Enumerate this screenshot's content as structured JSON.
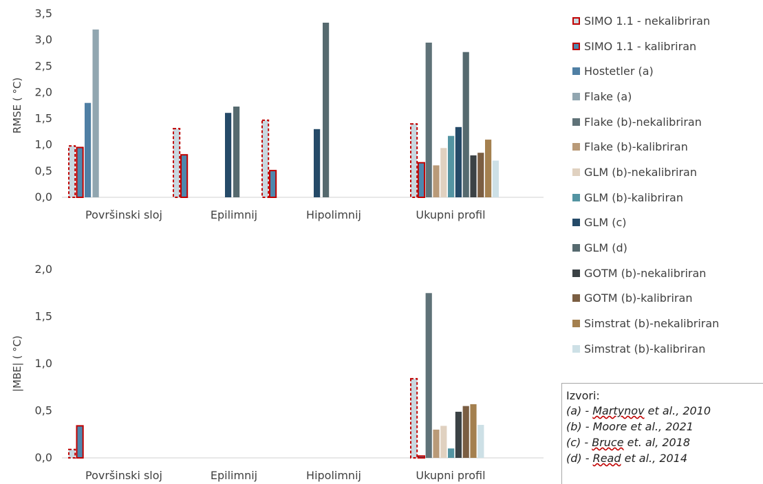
{
  "chart_data": [
    {
      "type": "bar",
      "ylabel": "RMSE   ( °C)",
      "ylim": [
        0,
        3.5
      ],
      "yticks": [
        "0,0",
        "0,5",
        "1,0",
        "1,5",
        "2,0",
        "2,5",
        "3,0",
        "3,5"
      ],
      "categories": [
        "Površinski sloj",
        "Epilimnij",
        "Hipolimnij",
        "Ukupni profil"
      ],
      "grid": false,
      "series": [
        {
          "name": "SIMO 1.1 - nekalibriran",
          "values": [
            0.98,
            1.31,
            1.47,
            1.4
          ]
        },
        {
          "name": "SIMO 1.1 - kalibriran",
          "values": [
            0.95,
            0.81,
            0.51,
            0.66
          ]
        },
        {
          "name": "Hostetler (a)",
          "values": [
            1.8,
            null,
            null,
            null
          ]
        },
        {
          "name": "Flake  (a)",
          "values": [
            3.2,
            null,
            null,
            null
          ]
        },
        {
          "name": "Flake  (b)-nekalibriran",
          "values": [
            null,
            null,
            null,
            2.95
          ]
        },
        {
          "name": "Flake  (b)-kalibriran",
          "values": [
            null,
            null,
            null,
            0.61
          ]
        },
        {
          "name": "GLM (b)-nekalibriran",
          "values": [
            null,
            null,
            null,
            0.94
          ]
        },
        {
          "name": "GLM (b)-kalibriran",
          "values": [
            null,
            null,
            null,
            1.17
          ]
        },
        {
          "name": "GLM (c)",
          "values": [
            null,
            1.61,
            1.3,
            1.34
          ]
        },
        {
          "name": "GLM (d)",
          "values": [
            null,
            1.73,
            3.33,
            2.77
          ]
        },
        {
          "name": "GOTM (b)-nekalibriran",
          "values": [
            null,
            null,
            null,
            0.8
          ]
        },
        {
          "name": "GOTM (b)-kalibriran",
          "values": [
            null,
            null,
            null,
            0.85
          ]
        },
        {
          "name": "Simstrat (b)-nekalibriran",
          "values": [
            null,
            null,
            null,
            1.1
          ]
        },
        {
          "name": "Simstrat (b)-kalibriran",
          "values": [
            null,
            null,
            null,
            0.7
          ]
        }
      ]
    },
    {
      "type": "bar",
      "ylabel": "|MBE|   ( °C)",
      "ylim": [
        0,
        2.0
      ],
      "yticks": [
        "0,0",
        "0,5",
        "1,0",
        "1,5",
        "2,0"
      ],
      "categories": [
        "Površinski sloj",
        "Epilimnij",
        "Hipolimnij",
        "Ukupni profil"
      ],
      "grid": false,
      "series": [
        {
          "name": "SIMO 1.1 - nekalibriran",
          "values": [
            0.09,
            null,
            null,
            0.84
          ]
        },
        {
          "name": "SIMO 1.1 - kalibriran",
          "values": [
            0.34,
            null,
            null,
            0.02
          ]
        },
        {
          "name": "Hostetler (a)",
          "values": [
            null,
            null,
            null,
            null
          ]
        },
        {
          "name": "Flake  (a)",
          "values": [
            null,
            null,
            null,
            null
          ]
        },
        {
          "name": "Flake  (b)-nekalibriran",
          "values": [
            null,
            null,
            null,
            1.75
          ]
        },
        {
          "name": "Flake  (b)-kalibriran",
          "values": [
            null,
            null,
            null,
            0.3
          ]
        },
        {
          "name": "GLM (b)-nekalibriran",
          "values": [
            null,
            null,
            null,
            0.34
          ]
        },
        {
          "name": "GLM (b)-kalibriran",
          "values": [
            null,
            null,
            null,
            0.1
          ]
        },
        {
          "name": "GLM (c)",
          "values": [
            null,
            null,
            null,
            null
          ]
        },
        {
          "name": "GLM (d)",
          "values": [
            null,
            null,
            null,
            null
          ]
        },
        {
          "name": "GOTM (b)-nekalibriran",
          "values": [
            null,
            null,
            null,
            0.49
          ]
        },
        {
          "name": "GOTM (b)-kalibriran",
          "values": [
            null,
            null,
            null,
            0.55
          ]
        },
        {
          "name": "Simstrat (b)-nekalibriran",
          "values": [
            null,
            null,
            null,
            0.57
          ]
        },
        {
          "name": "Simstrat (b)-kalibriran",
          "values": [
            null,
            null,
            null,
            0.35
          ]
        }
      ]
    }
  ],
  "styles": [
    {
      "fill": "#c9d8e0",
      "stroke": "#c00000",
      "dashed": true
    },
    {
      "fill": "#4e87ad",
      "stroke": "#c00000",
      "dashed": false
    },
    {
      "fill": "#4f7fa4",
      "stroke": null,
      "dashed": false
    },
    {
      "fill": "#91a6b0",
      "stroke": null,
      "dashed": false
    },
    {
      "fill": "#5f7278",
      "stroke": null,
      "dashed": false
    },
    {
      "fill": "#b99a78",
      "stroke": null,
      "dashed": false
    },
    {
      "fill": "#e0d1c0",
      "stroke": null,
      "dashed": false
    },
    {
      "fill": "#5394a2",
      "stroke": null,
      "dashed": false
    },
    {
      "fill": "#254a68",
      "stroke": null,
      "dashed": false
    },
    {
      "fill": "#566a6f",
      "stroke": null,
      "dashed": false
    },
    {
      "fill": "#3b4245",
      "stroke": null,
      "dashed": false
    },
    {
      "fill": "#7b5e42",
      "stroke": null,
      "dashed": false
    },
    {
      "fill": "#a4804f",
      "stroke": null,
      "dashed": false
    },
    {
      "fill": "#cde0e6",
      "stroke": null,
      "dashed": false
    }
  ],
  "sources": {
    "title": "Izvori:",
    "items": [
      {
        "prefix": "(a) - ",
        "author": "Martynov",
        "rest": " et al., 2010"
      },
      {
        "prefix": "(b) - Moore et al., 2021",
        "author": "",
        "rest": ""
      },
      {
        "prefix": "(c) - ",
        "author": "Bruce",
        "rest": " et. al, 2018"
      },
      {
        "prefix": "(d) - ",
        "author": "Read",
        "rest": " et al., 2014"
      }
    ]
  }
}
